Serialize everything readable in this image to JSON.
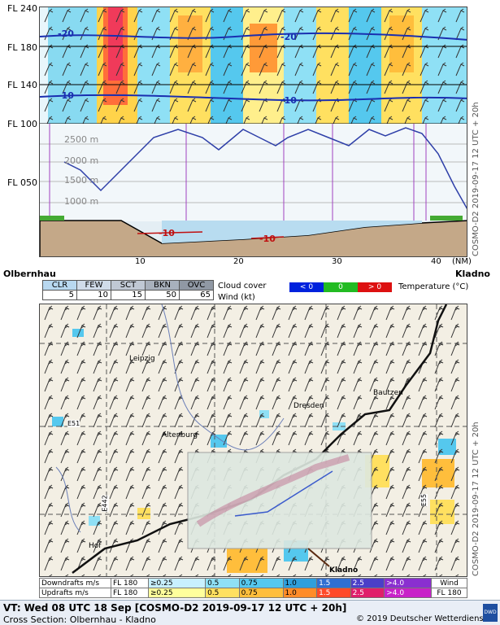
{
  "cross_section": {
    "flight_levels": [
      "FL 240",
      "FL 180",
      "FL 140",
      "FL 100",
      "FL 050"
    ],
    "altitudes": [
      "2500 m",
      "2000 m",
      "1500 m",
      "1000 m"
    ],
    "isotherms": [
      "-20",
      "-20",
      "-10",
      "-10",
      "-10",
      "-10"
    ],
    "x_ticks": [
      "10",
      "20",
      "30",
      "40"
    ],
    "x_unit": "(NM)",
    "start": "Olbernhau",
    "end": "Kladno",
    "side_label": "COSMO-D2 2019-09-17 12 UTC + 20h"
  },
  "legend": {
    "cloud_cover_label": "Cloud cover",
    "wind_label": "Wind (kt)",
    "categories": [
      "CLR",
      "FEW",
      "SCT",
      "BKN",
      "OVC"
    ],
    "wind_values": [
      "5",
      "10",
      "15",
      "50",
      "65"
    ],
    "temperature_label": "Temperature (°C)",
    "temp_boxes": [
      "< 0",
      "0",
      "> 0"
    ],
    "temp_colors": [
      "#0022dd",
      "#22bb22",
      "#dd1111"
    ]
  },
  "map": {
    "cities": [
      "Leipzig",
      "Dresden",
      "Bautzen",
      "Altenburg",
      "Hof",
      "Kladno"
    ],
    "roads": [
      "E51",
      "E442",
      "E55"
    ],
    "side_label": "COSMO-D2 2019-09-17 12 UTC + 20h"
  },
  "bottom_legend": {
    "downdrafts_label": "Downdrafts m/s",
    "updrafts_label": "Updrafts m/s",
    "level": "FL 180",
    "down_values": [
      "≥0.25",
      "0.5",
      "0.75",
      "1.0",
      "1.5",
      "2.5",
      ">4.0"
    ],
    "up_values": [
      "≥0.25",
      "0.5",
      "0.75",
      "1.0",
      "1.5",
      "2.5",
      ">4.0"
    ],
    "down_colors": [
      "#c8f0ff",
      "#8fe0f5",
      "#55c8ee",
      "#2f9fdc",
      "#2f6fd2",
      "#4a3fc8",
      "#8a2fd0"
    ],
    "up_colors": [
      "#ffff9c",
      "#ffe060",
      "#ffbe3c",
      "#ff8c28",
      "#ff4a28",
      "#e01f6a",
      "#c820c8"
    ],
    "wind_label": "Wind",
    "wind_level": "FL 180"
  },
  "footer": {
    "valid_time": "VT: Wed 08 UTC 18 Sep [COSMO-D2 2019-09-17 12 UTC + 20h]",
    "cross_section": "Cross Section: Olbernhau - Kladno",
    "copyright": "© 2019 Deutscher Wetterdienst",
    "logo": "DWD"
  }
}
